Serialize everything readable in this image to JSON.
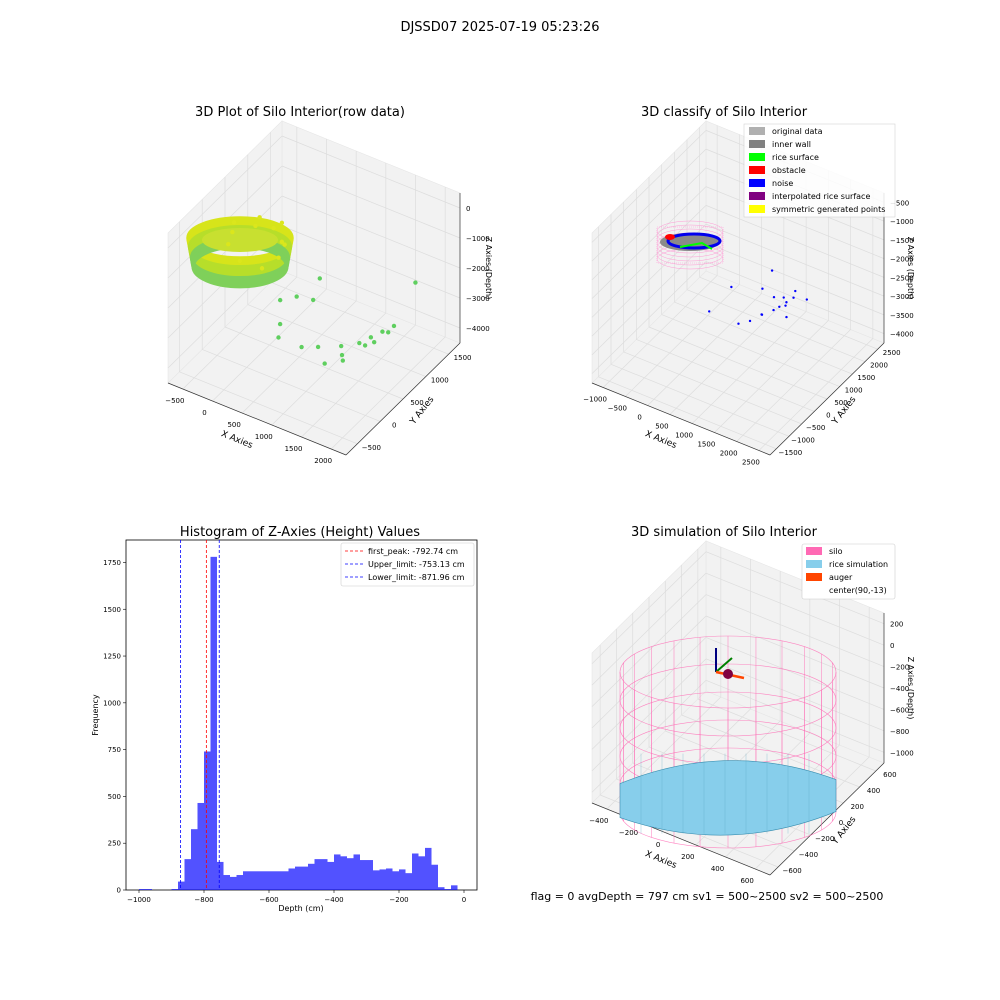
{
  "suptitle": "DJSSD07 2025-07-19 05:23:26",
  "footer": "flag = 0     avgDepth = 797 cm  sv1 = 500~2500  sv2 = 500~2500",
  "colors": {
    "grid": "#dddddd",
    "pane": "#f2f2f2",
    "histBar": "#0000ff",
    "silo": "#ff69b4",
    "rice": "#87ceeb",
    "auger": "#ff4500"
  },
  "chart_data": [
    {
      "type": "scatter",
      "title": "3D Plot of Silo Interior(row data)",
      "xlabel": "X Axies",
      "ylabel": "Y Axies",
      "zlabel": "Z Axies (Depth)",
      "x_ticks": [
        "−500",
        "0",
        "500",
        "1000",
        "1500",
        "2000"
      ],
      "y_ticks": [
        "−500",
        "0",
        "500",
        "1000",
        "1500"
      ],
      "z_ticks": [
        "0",
        "−1000",
        "−2000",
        "−3000",
        "−4000"
      ],
      "xlim": [
        -600,
        2100
      ],
      "ylim": [
        -600,
        1700
      ],
      "zlim": [
        -4200,
        100
      ],
      "series": [
        {
          "points": [
            [
              -300,
              300,
              -900
            ],
            [
              -100,
              500,
              -850
            ],
            [
              100,
              600,
              -900
            ],
            [
              300,
              500,
              -1000
            ],
            [
              400,
              300,
              -1100
            ],
            [
              300,
              100,
              -1200
            ],
            [
              0,
              50,
              -1150
            ],
            [
              -250,
              150,
              -1000
            ],
            [
              -350,
              400,
              -800
            ],
            [
              -150,
              650,
              -850
            ],
            [
              150,
              700,
              -850
            ],
            [
              380,
              450,
              -950
            ]
          ]
        },
        {
          "points": [
            [
              600,
              400,
              -2200
            ],
            [
              700,
              600,
              -2500
            ],
            [
              800,
              -200,
              -2000
            ],
            [
              1000,
              300,
              -3200
            ],
            [
              1200,
              500,
              -3300
            ],
            [
              1400,
              600,
              -3200
            ],
            [
              1500,
              700,
              -3100
            ],
            [
              1600,
              800,
              -3000
            ],
            [
              1700,
              900,
              -2900
            ],
            [
              1300,
              400,
              -3500
            ],
            [
              1100,
              300,
              -3600
            ],
            [
              1550,
              700,
              -3200
            ],
            [
              1650,
              850,
              -3050
            ],
            [
              1450,
              650,
              -3300
            ],
            [
              1250,
              450,
              -3450
            ],
            [
              900,
              100,
              -3000
            ],
            [
              700,
              -100,
              -2600
            ],
            [
              1800,
              1200,
              -2000
            ],
            [
              650,
              800,
              -2200
            ],
            [
              500,
              200,
              -2100
            ]
          ]
        }
      ]
    },
    {
      "type": "scatter",
      "title": "3D classify of Silo Interior",
      "xlabel": "X Axies",
      "ylabel": "Y Axies",
      "zlabel": "Z Axies (Depth)",
      "x_ticks": [
        "−1000",
        "−500",
        "0",
        "500",
        "1000",
        "1500",
        "2000",
        "2500"
      ],
      "y_ticks": [
        "−1500",
        "−1000",
        "−500",
        "0",
        "500",
        "1000",
        "1500",
        "2000",
        "2500"
      ],
      "z_ticks": [
        "−500",
        "−1000",
        "−1500",
        "−2000",
        "−2500",
        "−3000",
        "−3500",
        "−4000"
      ],
      "xlim": [
        -1200,
        2800
      ],
      "ylim": [
        -1600,
        2700
      ],
      "zlim": [
        -4200,
        -200
      ],
      "legend": [
        {
          "label": "original data",
          "color": "#b0b0b0"
        },
        {
          "label": "inner wall",
          "color": "#808080"
        },
        {
          "label": "rice surface",
          "color": "#00ff00"
        },
        {
          "label": "obstacle",
          "color": "#ff0000"
        },
        {
          "label": "noise",
          "color": "#0000ff"
        },
        {
          "label": "interpolated rice surface",
          "color": "#800080"
        },
        {
          "label": "symmetric generated points",
          "color": "#ffff00"
        }
      ],
      "legend_loc": "top-right",
      "series": [
        {
          "name": "noise",
          "points": [
            [
              1200,
              800,
              -2200
            ],
            [
              1400,
              900,
              -2400
            ],
            [
              1600,
              1000,
              -2600
            ],
            [
              1500,
              1100,
              -2500
            ],
            [
              1300,
              600,
              -2700
            ],
            [
              1700,
              1200,
              -2300
            ],
            [
              1100,
              500,
              -2900
            ],
            [
              1800,
              700,
              -2600
            ],
            [
              1900,
              1300,
              -2500
            ],
            [
              1250,
              700,
              -2800
            ],
            [
              1450,
              800,
              -2650
            ],
            [
              1650,
              950,
              -2450
            ],
            [
              1550,
              850,
              -2550
            ],
            [
              1750,
              1050,
              -2350
            ],
            [
              800,
              300,
              -2000
            ],
            [
              600,
              -200,
              -2400
            ],
            [
              1000,
              1500,
              -2300
            ],
            [
              900,
              400,
              -3000
            ]
          ]
        }
      ]
    },
    {
      "type": "bar",
      "title": "Histogram of Z-Axies (Height) Values",
      "xlabel": "Depth (cm)",
      "ylabel": "Frequency",
      "xlim": [
        -1040,
        40
      ],
      "ylim": [
        0,
        1870
      ],
      "x_ticks": [
        -1000,
        -800,
        -600,
        -400,
        -200,
        0
      ],
      "x_tick_labels": [
        "−1000",
        "−800",
        "−600",
        "−400",
        "−200",
        "0"
      ],
      "y_ticks": [
        0,
        250,
        500,
        750,
        1000,
        1250,
        1500,
        1750
      ],
      "bins": [
        -1000,
        -980,
        -960,
        -940,
        -920,
        -900,
        -880,
        -860,
        -840,
        -820,
        -800,
        -780,
        -760,
        -740,
        -720,
        -700,
        -680,
        -660,
        -640,
        -620,
        -600,
        -580,
        -560,
        -540,
        -520,
        -500,
        -480,
        -460,
        -440,
        -420,
        -400,
        -380,
        -360,
        -340,
        -320,
        -300,
        -280,
        -260,
        -240,
        -220,
        -200,
        -180,
        -160,
        -140,
        -120,
        -100,
        -80,
        -60,
        -40,
        -20,
        0
      ],
      "counts": [
        5,
        5,
        0,
        0,
        0,
        5,
        45,
        165,
        325,
        465,
        740,
        1780,
        150,
        80,
        70,
        80,
        100,
        100,
        100,
        100,
        100,
        100,
        100,
        115,
        125,
        125,
        140,
        165,
        165,
        150,
        190,
        180,
        170,
        190,
        160,
        160,
        105,
        110,
        115,
        100,
        110,
        90,
        195,
        180,
        225,
        135,
        15,
        5,
        25,
        0
      ],
      "vlines": [
        {
          "x": -792.74,
          "color": "#ff0000",
          "label": "first_peak: -792.74 cm"
        },
        {
          "x": -753.13,
          "color": "#0000ff",
          "label": "Upper_limit: -753.13 cm"
        },
        {
          "x": -871.96,
          "color": "#0000ff",
          "label": "Lower_limit: -871.96 cm"
        }
      ],
      "legend_loc": "top-right"
    },
    {
      "type": "surface",
      "title": "3D simulation of Silo Interior",
      "xlabel": "X Axies",
      "ylabel": "Y Axies",
      "zlabel": "Z Axies (Depth)",
      "x_ticks": [
        "−400",
        "−200",
        "0",
        "200",
        "400",
        "600"
      ],
      "y_ticks": [
        "−600",
        "−400",
        "−200",
        "0",
        "200",
        "400",
        "600"
      ],
      "z_ticks": [
        "200",
        "0",
        "−200",
        "−400",
        "−600",
        "−800",
        "−1000"
      ],
      "xlim": [
        -560,
        760
      ],
      "ylim": [
        -700,
        700
      ],
      "zlim": [
        -1100,
        300
      ],
      "silo": {
        "center": [
          90,
          -13
        ],
        "radius": 600,
        "z_top": 0,
        "z_bottom": -1000
      },
      "rice": {
        "mean_depth": -797,
        "min_depth": -850,
        "max_depth": -720
      },
      "legend": [
        {
          "label": "silo",
          "color": "#ff69b4"
        },
        {
          "label": "rice simulation",
          "color": "#87ceeb"
        },
        {
          "label": "auger",
          "color": "#ff4500"
        },
        {
          "label": "center(90,-13)",
          "color": ""
        }
      ],
      "legend_loc": "top-right"
    }
  ]
}
